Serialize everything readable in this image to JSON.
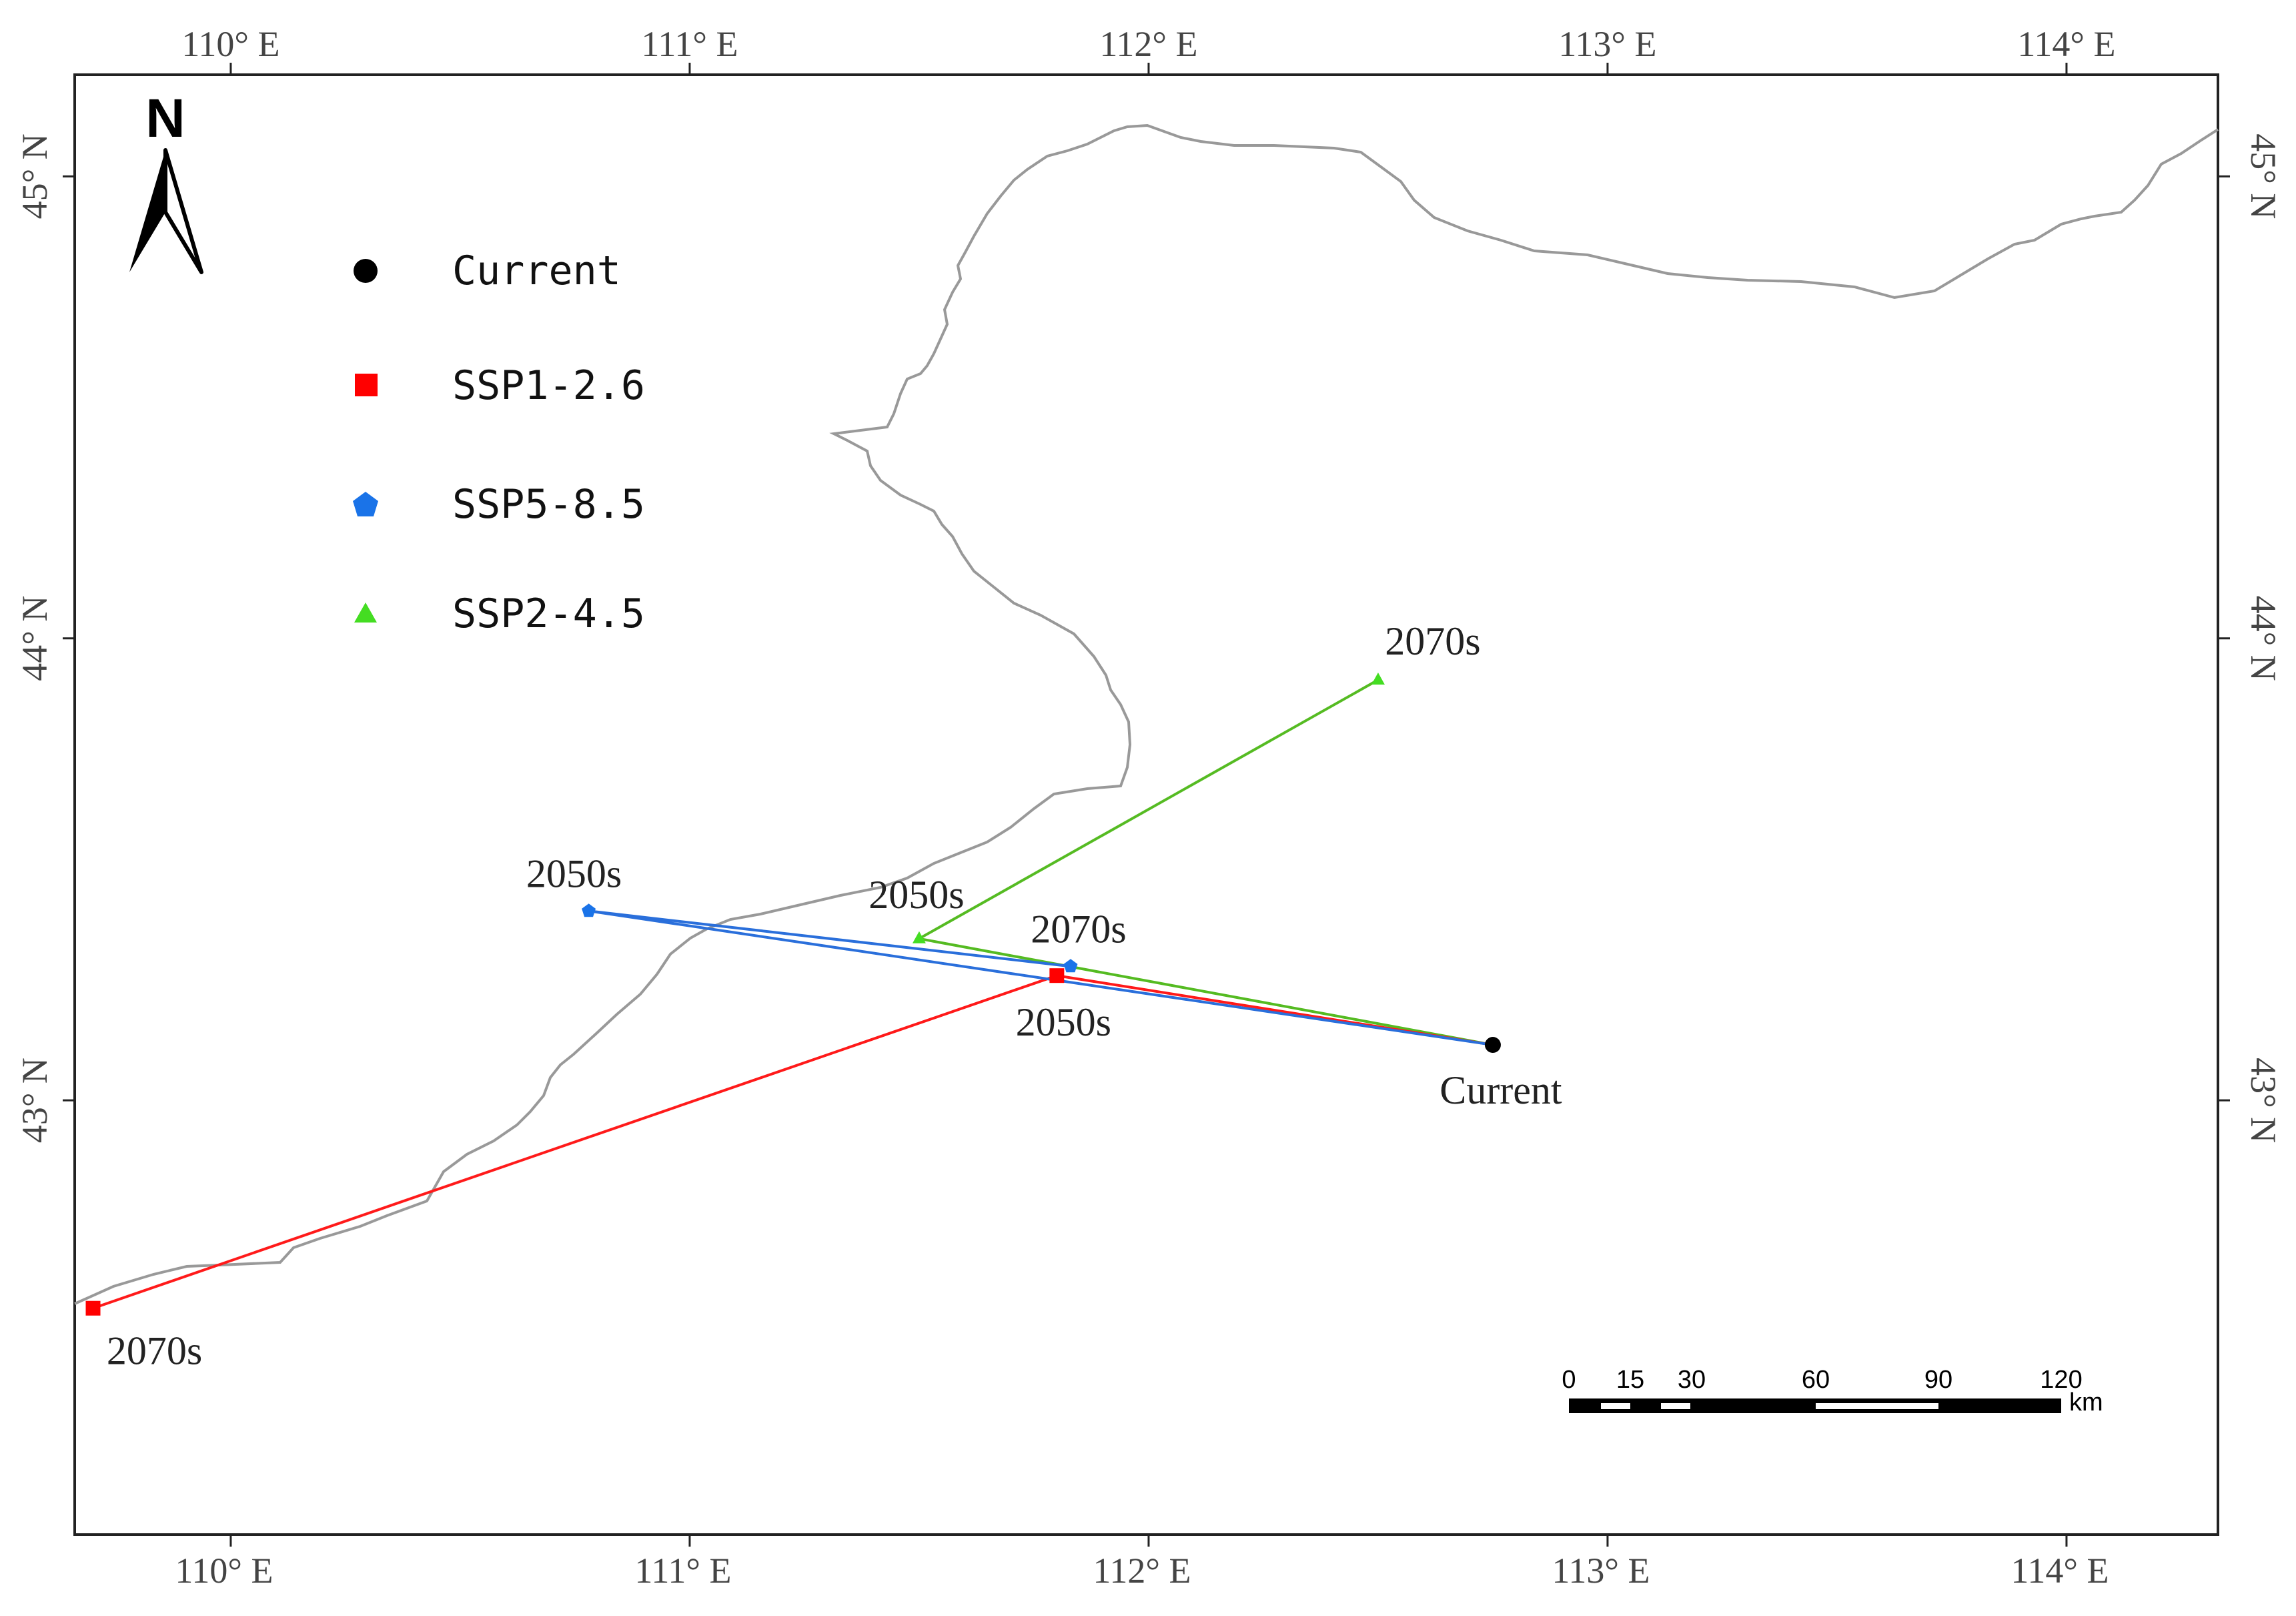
{
  "map": {
    "lon_ticks_top": [
      "110° E",
      "111° E",
      "112° E",
      "113° E",
      "114° E"
    ],
    "lon_ticks_bottom": [
      "110° E",
      "111° E",
      "112° E",
      "113° E",
      "114° E"
    ],
    "lat_ticks_left": [
      "45° N",
      "44° N",
      "43° N"
    ],
    "lat_ticks_right": [
      "45° N",
      "44° N",
      "43° N"
    ],
    "lon_values": [
      110,
      111,
      112,
      113,
      114
    ],
    "lat_values": [
      45,
      44,
      43
    ],
    "extent": {
      "lon": [
        109.66,
        114.33
      ],
      "lat": [
        42.06,
        45.22
      ]
    },
    "north_arrow": {
      "label": "N",
      "icon": "north-arrow-icon"
    },
    "legend": [
      {
        "label": "Current",
        "symbol": "circle",
        "color": "#000000"
      },
      {
        "label": "SSP1-2.6",
        "symbol": "square",
        "color": "#ff0000"
      },
      {
        "label": "SSP5-8.5",
        "symbol": "pentagon",
        "color": "#1a73e8"
      },
      {
        "label": "SSP2-4.5",
        "symbol": "triangle",
        "color": "#44dd22"
      }
    ],
    "points": {
      "current": {
        "lon": 112.75,
        "lat": 43.12,
        "label": "Current"
      },
      "ssp126_2050s": {
        "lon": 111.8,
        "lat": 43.27,
        "label": "2050s"
      },
      "ssp126_2070s": {
        "lon": 109.7,
        "lat": 42.55,
        "label": "2070s"
      },
      "ssp585_2050s": {
        "lon": 110.78,
        "lat": 43.41,
        "label": "2050s"
      },
      "ssp585_2070s": {
        "lon": 111.83,
        "lat": 43.29,
        "label": "2070s"
      },
      "ssp245_2050s": {
        "lon": 111.5,
        "lat": 43.35,
        "label": "2050s"
      },
      "ssp245_2070s": {
        "lon": 112.5,
        "lat": 43.91,
        "label": "2070s"
      }
    },
    "line_colors": {
      "ssp126": "#ff1a1a",
      "ssp585": "#2a6fdb",
      "ssp245": "#55bb22"
    },
    "scale_bar": {
      "ticks": [
        "0",
        "15",
        "30",
        "60",
        "90",
        "120"
      ],
      "unit": "km"
    }
  }
}
